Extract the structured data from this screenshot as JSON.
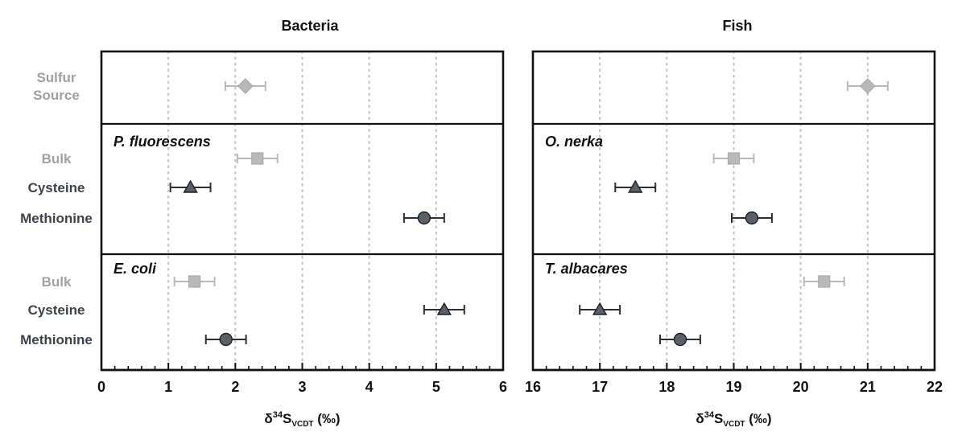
{
  "chart_data": [
    {
      "type": "scatter",
      "title": "Bacteria",
      "xlabel": {
        "main": "δ",
        "sup": "34",
        "s": "S",
        "sub": "VCDT",
        "unit": " (‰)"
      },
      "xlim": [
        0,
        6
      ],
      "xticks": [
        0,
        1,
        2,
        3,
        4,
        5,
        6
      ],
      "grid": "vertical dotted",
      "groups": [
        {
          "label": "",
          "rows": [
            {
              "label_lines": [
                "Sulfur",
                "Source"
              ],
              "style": "light",
              "marker": "diamond",
              "x": 2.15,
              "err_low": 1.85,
              "err_high": 2.45
            }
          ]
        },
        {
          "label": "P. fluorescens",
          "rows": [
            {
              "label_lines": [
                "Bulk"
              ],
              "style": "light",
              "marker": "square",
              "x": 2.33,
              "err_low": 2.03,
              "err_high": 2.63
            },
            {
              "label_lines": [
                "Cysteine"
              ],
              "style": "dark",
              "marker": "triangle",
              "x": 1.33,
              "err_low": 1.03,
              "err_high": 1.63
            },
            {
              "label_lines": [
                "Methionine"
              ],
              "style": "dark",
              "marker": "circle",
              "x": 4.82,
              "err_low": 4.52,
              "err_high": 5.12
            }
          ]
        },
        {
          "label": "E. coli",
          "rows": [
            {
              "label_lines": [
                "Bulk"
              ],
              "style": "light",
              "marker": "square",
              "x": 1.39,
              "err_low": 1.09,
              "err_high": 1.69
            },
            {
              "label_lines": [
                "Cysteine"
              ],
              "style": "dark",
              "marker": "triangle",
              "x": 5.12,
              "err_low": 4.82,
              "err_high": 5.42
            },
            {
              "label_lines": [
                "Methionine"
              ],
              "style": "dark",
              "marker": "circle",
              "x": 1.86,
              "err_low": 1.56,
              "err_high": 2.16
            }
          ]
        }
      ]
    },
    {
      "type": "scatter",
      "title": "Fish",
      "xlabel": {
        "main": "δ",
        "sup": "34",
        "s": "S",
        "sub": "VCDT",
        "unit": " (‰)"
      },
      "xlim": [
        16,
        22
      ],
      "xticks": [
        16,
        17,
        18,
        19,
        20,
        21,
        22
      ],
      "grid": "vertical dotted",
      "groups": [
        {
          "label": "",
          "rows": [
            {
              "label_lines": [
                "Sulfur",
                "Source"
              ],
              "style": "light",
              "marker": "diamond",
              "x": 21.0,
              "err_low": 20.7,
              "err_high": 21.3
            }
          ]
        },
        {
          "label": "O. nerka",
          "rows": [
            {
              "label_lines": [
                "Bulk"
              ],
              "style": "light",
              "marker": "square",
              "x": 19.0,
              "err_low": 18.7,
              "err_high": 19.3
            },
            {
              "label_lines": [
                "Cysteine"
              ],
              "style": "dark",
              "marker": "triangle",
              "x": 17.53,
              "err_low": 17.23,
              "err_high": 17.83
            },
            {
              "label_lines": [
                "Methionine"
              ],
              "style": "dark",
              "marker": "circle",
              "x": 19.27,
              "err_low": 18.97,
              "err_high": 19.57
            }
          ]
        },
        {
          "label": "T. albacares",
          "rows": [
            {
              "label_lines": [
                "Bulk"
              ],
              "style": "light",
              "marker": "square",
              "x": 20.35,
              "err_low": 20.05,
              "err_high": 20.65
            },
            {
              "label_lines": [
                "Cysteine"
              ],
              "style": "dark",
              "marker": "triangle",
              "x": 17.0,
              "err_low": 16.7,
              "err_high": 17.3
            },
            {
              "label_lines": [
                "Methionine"
              ],
              "style": "dark",
              "marker": "circle",
              "x": 18.2,
              "err_low": 17.9,
              "err_high": 18.5
            }
          ]
        }
      ]
    }
  ],
  "colors": {
    "light_marker": "#b9b9bb",
    "light_text": "#9ea0a3",
    "dark_marker": "#5a6068",
    "dark_text": "#3c434b",
    "frame": "#111111",
    "grid": "#c4c4c4"
  }
}
